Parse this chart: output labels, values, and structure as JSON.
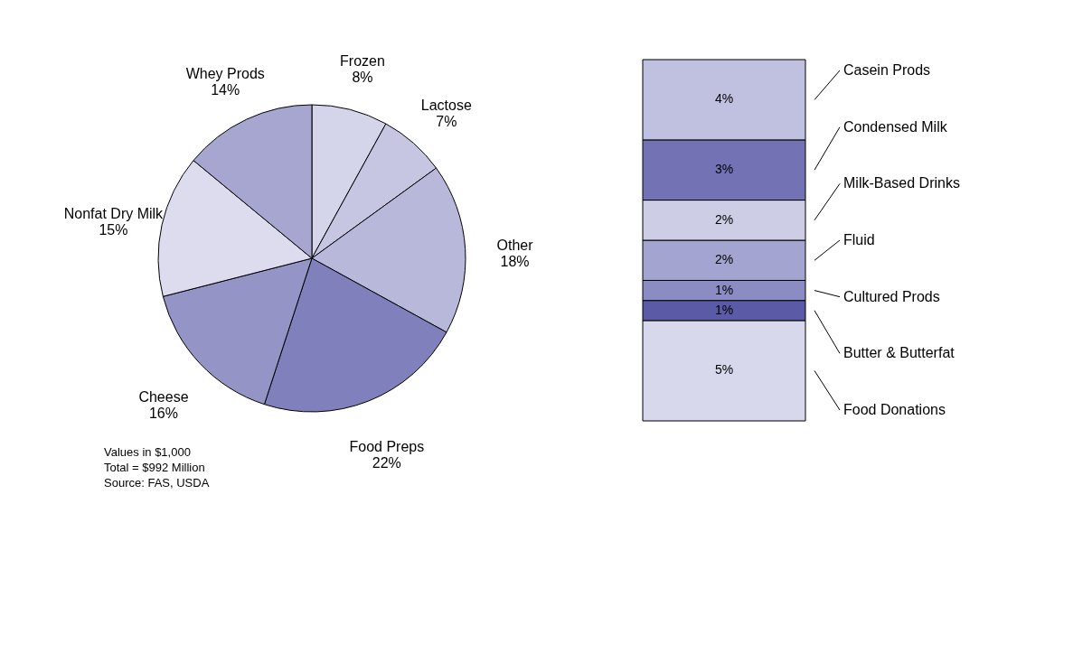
{
  "chart_data": [
    {
      "type": "pie",
      "categories": [
        "Frozen",
        "Lactose",
        "Other",
        "Food Preps",
        "Cheese",
        "Nonfat Dry Milk",
        "Whey Prods"
      ],
      "values": [
        8,
        7,
        18,
        22,
        16,
        15,
        14
      ],
      "value_labels": [
        "8%",
        "7%",
        "18%",
        "22%",
        "16%",
        "15%",
        "14%"
      ],
      "colors": [
        "#d4d4ea",
        "#c6c6e2",
        "#b8b8da",
        "#8080bc",
        "#9494c6",
        "#dcdcee",
        "#a6a6d0"
      ],
      "annotations": [
        "Values in $1,000",
        "Total = $992 Million",
        "Source: FAS, USDA"
      ]
    },
    {
      "type": "bar",
      "stacked": true,
      "categories": [
        null
      ],
      "legend": "right",
      "series": [
        {
          "name": "Food Donations",
          "color": "#d8d8ec",
          "values": [
            5
          ],
          "value_labels": [
            "5%"
          ]
        },
        {
          "name": "Butter & Butterfat",
          "color": "#5a5aa6",
          "values": [
            1
          ],
          "value_labels": [
            "1%"
          ]
        },
        {
          "name": "Cultured Prods",
          "color": "#8c8cc4",
          "values": [
            1
          ],
          "value_labels": [
            "1%"
          ]
        },
        {
          "name": "Fluid",
          "color": "#a4a4d0",
          "values": [
            2
          ],
          "value_labels": [
            "2%"
          ]
        },
        {
          "name": "Milk-Based Drinks",
          "color": "#cdcde6",
          "values": [
            2
          ],
          "value_labels": [
            "2%"
          ]
        },
        {
          "name": "Condensed Milk",
          "color": "#7272b4",
          "values": [
            3
          ],
          "value_labels": [
            "3%"
          ]
        },
        {
          "name": "Casein Prods",
          "color": "#c0c0e0",
          "values": [
            4
          ],
          "value_labels": [
            "4%"
          ]
        }
      ]
    }
  ]
}
